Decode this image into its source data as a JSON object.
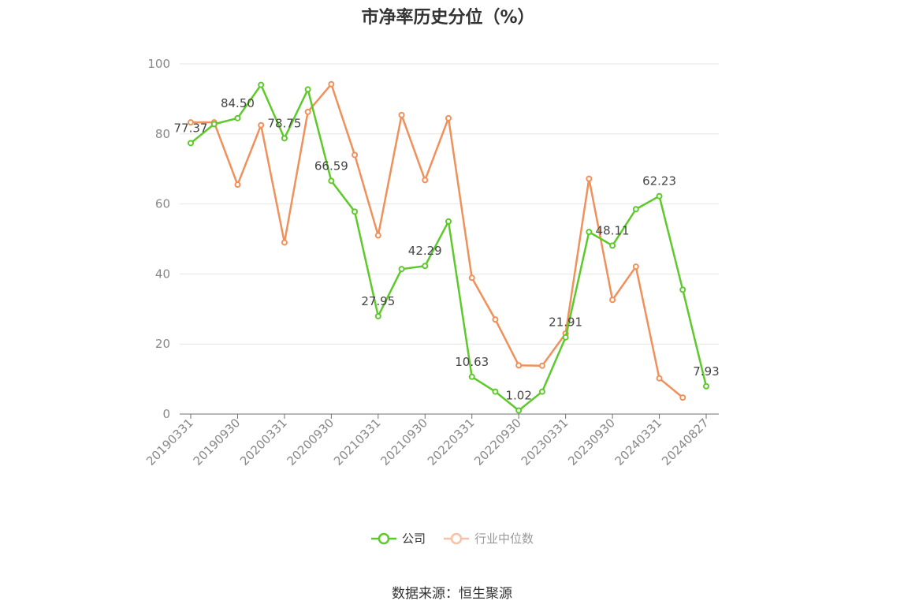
{
  "title": "市净率历史分位（%）",
  "source": "数据来源：恒生聚源",
  "legend": [
    {
      "label": "公司",
      "color": "#5dc92b"
    },
    {
      "label": "行业中位数",
      "color": "#f0905a"
    }
  ],
  "chart_data": {
    "type": "line",
    "title": "市净率历史分位（%）",
    "ylim": [
      0,
      100
    ],
    "yticks": [
      0,
      20,
      40,
      60,
      80,
      100
    ],
    "grid": true,
    "legend_position": "bottom",
    "x_tick_labels": [
      "20190331",
      "20190930",
      "20200331",
      "20200930",
      "20210331",
      "20210930",
      "20220331",
      "20220930",
      "20230331",
      "20230930",
      "20240331",
      "20240827"
    ],
    "x": [
      "20190331",
      "20190630",
      "20190930",
      "20191231",
      "20200331",
      "20200630",
      "20200930",
      "20201231",
      "20210331",
      "20210630",
      "20210930",
      "20211231",
      "20220331",
      "20220630",
      "20220930",
      "20221231",
      "20230331",
      "20230630",
      "20230930",
      "20231231",
      "20240331",
      "20240630",
      "20240827"
    ],
    "series": [
      {
        "name": "公司",
        "color": "#5dc92b",
        "values": [
          77.37,
          82.8,
          84.5,
          94.0,
          78.75,
          92.7,
          66.59,
          57.8,
          27.95,
          41.4,
          42.29,
          55.0,
          10.63,
          6.4,
          1.02,
          6.4,
          21.91,
          52.0,
          48.11,
          58.5,
          62.23,
          35.5,
          7.93
        ],
        "labels": {
          "0": "77.37",
          "2": "84.50",
          "4": "78.75",
          "6": "66.59",
          "8": "27.95",
          "10": "42.29",
          "12": "10.63",
          "14": "1.02",
          "16": "21.91",
          "18": "48.11",
          "20": "62.23",
          "22": "7.93"
        }
      },
      {
        "name": "行业中位数",
        "color": "#f0905a",
        "values": [
          83.3,
          83.3,
          65.5,
          82.5,
          49.0,
          86.3,
          94.2,
          74.0,
          51.0,
          85.4,
          66.8,
          84.5,
          38.9,
          27.0,
          13.9,
          13.8,
          23.0,
          67.2,
          32.6,
          42.1,
          10.2,
          4.7,
          null
        ]
      }
    ]
  }
}
